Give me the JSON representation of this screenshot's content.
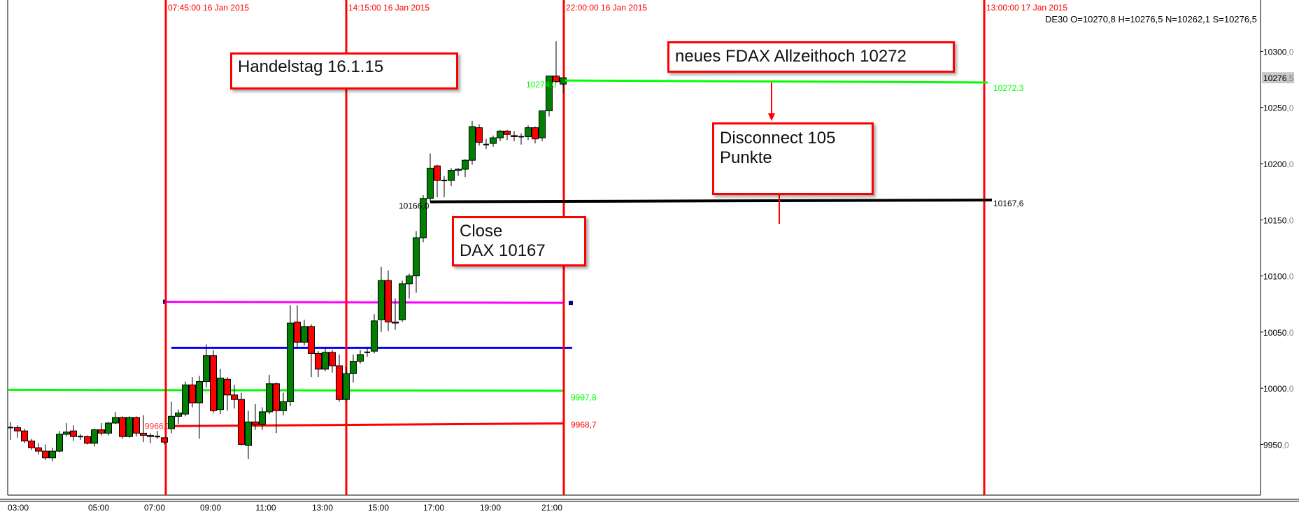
{
  "header": {
    "symbol": "DE30",
    "ohlc_text": "O=10270,8 H=10276,5 N=10262,1 S=10276,5"
  },
  "vertical_lines": [
    {
      "label": "07:45:00 16 Jan 2015",
      "time": "07:45"
    },
    {
      "label": "14:15:00 16 Jan 2015",
      "time": "14:15"
    },
    {
      "label": "22:00:00 16 Jan 2015",
      "time": "22:00"
    },
    {
      "label": "13:00:00 17 Jan 2015",
      "time": "13:00 17 Jan"
    }
  ],
  "annotations": {
    "handelstag": "Handelstag 16.1.15",
    "allzeithoch": "neues FDAX Allzeithoch 10272",
    "disconnect_line1": "Disconnect 105",
    "disconnect_line2": "Punkte",
    "close_line1": "Close",
    "close_line2": "DAX 10167"
  },
  "colors": {
    "up": "#008000",
    "down": "#ff0000",
    "vline": "#ff0000",
    "green_level": "#00ff00",
    "red_level": "#ff0000",
    "blue_level": "#0000ff",
    "magenta_level": "#ff00ff",
    "close_level": "#000000"
  },
  "chart_data": {
    "type": "candlestick",
    "interval": "15 min",
    "ylim": [
      9915,
      10330
    ],
    "y_ticks": [
      "10300,0",
      "10250,0",
      "10200,0",
      "10150,0",
      "10100,0",
      "10050,0",
      "10000,0",
      "9950,0"
    ],
    "y_tick_values": [
      10300,
      10250,
      10200,
      10150,
      10100,
      10050,
      10000,
      9950
    ],
    "current_price_label": "10276,5",
    "current_price": 10276.5,
    "x_ticks": [
      "03:00",
      "05:00",
      "07:00",
      "09:00",
      "11:00",
      "13:00",
      "15:00",
      "17:00",
      "19:00",
      "21:00"
    ],
    "candles": [
      [
        9965,
        9970,
        9954,
        9965
      ],
      [
        9965,
        9967,
        9956,
        9962
      ],
      [
        9962,
        9964,
        9951,
        9953
      ],
      [
        9953,
        9955,
        9945,
        9947
      ],
      [
        9947,
        9951,
        9941,
        9944
      ],
      [
        9944,
        9950,
        9936,
        9938
      ],
      [
        9938,
        9947,
        9935,
        9944
      ],
      [
        9944,
        9962,
        9943,
        9959
      ],
      [
        9959,
        9969,
        9957,
        9961
      ],
      [
        9962,
        9967,
        9953,
        9957
      ],
      [
        9957,
        9959,
        9954,
        9957
      ],
      [
        9957,
        9958,
        9950,
        9951
      ],
      [
        9951,
        9964,
        9948,
        9963
      ],
      [
        9963,
        9969,
        9958,
        9960
      ],
      [
        9960,
        9970,
        9958,
        9969
      ],
      [
        9969,
        9979,
        9968,
        9974
      ],
      [
        9974,
        9975,
        9955,
        9957
      ],
      [
        9957,
        9975,
        9956,
        9974
      ],
      [
        9974,
        9975,
        9957,
        9960
      ],
      [
        9960,
        9976,
        9952,
        9958
      ],
      [
        9958,
        9960,
        9951,
        9957
      ],
      [
        9957,
        9962,
        9955,
        9957
      ],
      [
        9956,
        9956,
        9950,
        9952
      ],
      [
        9964,
        9988,
        9960,
        9975
      ],
      [
        9975,
        9981,
        9968,
        9978
      ],
      [
        9977,
        10006,
        9975,
        10003
      ],
      [
        10003,
        10010,
        9983,
        9987
      ],
      [
        9987,
        10011,
        9955,
        10006
      ],
      [
        10006,
        10039,
        10001,
        10029
      ],
      [
        10029,
        10034,
        9978,
        9980
      ],
      [
        9981,
        10017,
        9977,
        10009
      ],
      [
        10008,
        10010,
        9980,
        9994
      ],
      [
        9994,
        10003,
        9982,
        9990
      ],
      [
        9990,
        9996,
        9949,
        9950
      ],
      [
        9949,
        9980,
        9937,
        9970
      ],
      [
        9970,
        9986,
        9963,
        9968
      ],
      [
        9968,
        9983,
        9963,
        9979
      ],
      [
        9979,
        10012,
        9977,
        10004
      ],
      [
        10004,
        10005,
        9960,
        9980
      ],
      [
        9980,
        9996,
        9976,
        9988
      ],
      [
        9988,
        10074,
        9984,
        10058
      ],
      [
        10059,
        10074,
        10036,
        10041
      ],
      [
        10041,
        10061,
        10038,
        10055
      ],
      [
        10055,
        10057,
        10010,
        10031
      ],
      [
        10031,
        10033,
        10010,
        10017
      ],
      [
        10017,
        10036,
        10015,
        10032
      ],
      [
        10032,
        10034,
        10014,
        10020
      ],
      [
        10020,
        10030,
        9988,
        9990
      ],
      [
        9990,
        10019,
        9989,
        10013
      ],
      [
        10013,
        10030,
        10005,
        10024
      ],
      [
        10024,
        10034,
        10022,
        10030
      ],
      [
        10032,
        10036,
        10028,
        10032
      ],
      [
        10033,
        10066,
        10031,
        10060
      ],
      [
        10061,
        10108,
        10050,
        10096
      ],
      [
        10096,
        10105,
        10051,
        10059
      ],
      [
        10059,
        10080,
        10052,
        10058
      ],
      [
        10061,
        10096,
        10059,
        10093
      ],
      [
        10093,
        10102,
        10080,
        10100
      ],
      [
        10100,
        10140,
        10085,
        10134
      ],
      [
        10134,
        10172,
        10130,
        10169
      ],
      [
        10169,
        10209,
        10166,
        10196
      ],
      [
        10198,
        10199,
        10170,
        10185
      ],
      [
        10185,
        10189,
        10170,
        10185
      ],
      [
        10185,
        10196,
        10180,
        10194
      ],
      [
        10194,
        10196,
        10189,
        10195
      ],
      [
        10195,
        10204,
        10188,
        10203
      ],
      [
        10203,
        10238,
        10199,
        10233
      ],
      [
        10232,
        10235,
        10216,
        10219
      ],
      [
        10217,
        10222,
        10213,
        10217
      ],
      [
        10218,
        10225,
        10215,
        10223
      ],
      [
        10223,
        10230,
        10220,
        10229
      ],
      [
        10229,
        10230,
        10221,
        10226
      ],
      [
        10225,
        10229,
        10220,
        10224
      ],
      [
        10224,
        10227,
        10217,
        10224
      ],
      [
        10224,
        10234,
        10221,
        10232
      ],
      [
        10232,
        10233,
        10218,
        10222
      ],
      [
        10223,
        10247,
        10220,
        10247
      ],
      [
        10247,
        10278,
        10242,
        10278
      ],
      [
        10278,
        10309,
        10272,
        10273
      ],
      [
        10270.8,
        10276.5,
        10262.1,
        10276.5
      ]
    ],
    "levels": [
      {
        "name": "green-lower",
        "value": 9997.8,
        "label": "9997,8"
      },
      {
        "name": "red",
        "value": 9968.7,
        "label": "9968,7",
        "start_label": "9966,3",
        "start_value": 9966.3
      },
      {
        "name": "blue",
        "value": 10036
      },
      {
        "name": "magenta",
        "value": 10077
      },
      {
        "name": "close",
        "value": 10167.6,
        "label": "10167,6",
        "start_label": "10166,0",
        "start_value": 10166.0
      },
      {
        "name": "green-upper",
        "value": 10272.3,
        "label": "10272,3",
        "start_label": "10274,0",
        "start_value": 10274.0
      }
    ]
  }
}
